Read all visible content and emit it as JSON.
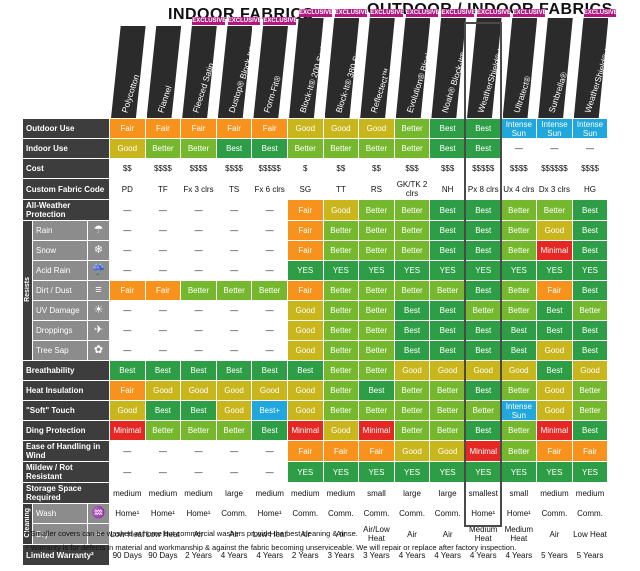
{
  "headers": {
    "indoor": "INDOOR FABRICS",
    "outdoor": "OUTDOOR / INDOOR FABRICS",
    "exclusive": "EXCLUSIVE"
  },
  "fabrics": [
    {
      "name": "Polycotton",
      "exclusive": false
    },
    {
      "name": "Flannel",
      "exclusive": false
    },
    {
      "name": "Fleeced Satin",
      "exclusive": true
    },
    {
      "name": "Dustop® Block-It®",
      "exclusive": true
    },
    {
      "name": "Form-Fit®",
      "exclusive": true
    },
    {
      "name": "Block-It® 200 Series",
      "exclusive": true
    },
    {
      "name": "Block-It® 380 Series",
      "exclusive": true
    },
    {
      "name": "Reflectect™",
      "exclusive": true
    },
    {
      "name": "Evolution® Block-It®",
      "exclusive": true
    },
    {
      "name": "Noah® Block-It®",
      "exclusive": true
    },
    {
      "name": "WeatherShield® HP",
      "exclusive": true
    },
    {
      "name": "Ultratect®",
      "exclusive": true
    },
    {
      "name": "Sunbrella®",
      "exclusive": false
    },
    {
      "name": "WeatherShield® HD",
      "exclusive": true
    }
  ],
  "group_labels": {
    "resists": "Resists",
    "cleaning": "Cleaning"
  },
  "rows": [
    {
      "label": "Outdoor Use",
      "kind": "main",
      "cells": [
        "Fair",
        "Fair",
        "Fair",
        "Fair",
        "Fair",
        "Good",
        "Good",
        "Good",
        "Better",
        "Best",
        "Best",
        "Intense Sun",
        "Intense Sun",
        "Intense Sun"
      ],
      "colors": [
        "Fa",
        "Fa",
        "Fa",
        "Fa",
        "Fa",
        "Go",
        "Go",
        "Go",
        "Be",
        "Bs",
        "Bs",
        "In",
        "In",
        "In"
      ]
    },
    {
      "label": "Indoor Use",
      "kind": "main",
      "cells": [
        "Good",
        "Better",
        "Better",
        "Best",
        "Best",
        "Better",
        "Better",
        "Better",
        "Better",
        "Best",
        "Best",
        "—",
        "—",
        "—"
      ],
      "colors": [
        "Go",
        "Be",
        "Be",
        "Bs",
        "Bs",
        "Be",
        "Be",
        "Be",
        "Be",
        "Bs",
        "Bs",
        "w",
        "w",
        "w"
      ]
    },
    {
      "label": "Cost",
      "kind": "main",
      "cells": [
        "$$",
        "$$$$",
        "$$$$",
        "$$$$",
        "$$$$$",
        "$",
        "$$",
        "$$",
        "$$$",
        "$$$",
        "$$$$$",
        "$$$$",
        "$$$$$$",
        "$$$$"
      ],
      "colors": [
        "w",
        "w",
        "w",
        "w",
        "w",
        "w",
        "w",
        "w",
        "w",
        "w",
        "w",
        "w",
        "w",
        "w"
      ]
    },
    {
      "label": "Custom Fabric Code",
      "kind": "main",
      "cells": [
        "PD",
        "TF",
        "Fx 3 clrs",
        "TS",
        "Fx 6 clrs",
        "SG",
        "TT",
        "RS",
        "GK/TK 2 clrs",
        "NH",
        "Px 8 clrs",
        "Ux 4 clrs",
        "Dx 3 clrs",
        "HG"
      ],
      "colors": [
        "w",
        "w",
        "w",
        "w",
        "w",
        "w",
        "w",
        "w",
        "w",
        "w",
        "w",
        "w",
        "w",
        "w"
      ]
    },
    {
      "label": "All-Weather Protection",
      "kind": "main",
      "cells": [
        "—",
        "—",
        "—",
        "—",
        "—",
        "Fair",
        "Good",
        "Better",
        "Better",
        "Best",
        "Best",
        "Better",
        "Better",
        "Best"
      ],
      "colors": [
        "w",
        "w",
        "w",
        "w",
        "w",
        "Fa",
        "Go",
        "Be",
        "Be",
        "Bs",
        "Bs",
        "Be",
        "Be",
        "Bs"
      ]
    },
    {
      "label": "Rain",
      "kind": "sub",
      "icon": "☂",
      "cells": [
        "—",
        "—",
        "—",
        "—",
        "—",
        "Fair",
        "Better",
        "Better",
        "Better",
        "Best",
        "Best",
        "Better",
        "Good",
        "Best"
      ],
      "colors": [
        "w",
        "w",
        "w",
        "w",
        "w",
        "Fa",
        "Be",
        "Be",
        "Be",
        "Bs",
        "Bs",
        "Be",
        "Go",
        "Bs"
      ]
    },
    {
      "label": "Snow",
      "kind": "sub",
      "icon": "❄",
      "cells": [
        "—",
        "—",
        "—",
        "—",
        "—",
        "Fair",
        "Better",
        "Better",
        "Better",
        "Best",
        "Best",
        "Better",
        "Minimal",
        "Best"
      ],
      "colors": [
        "w",
        "w",
        "w",
        "w",
        "w",
        "Fa",
        "Be",
        "Be",
        "Be",
        "Bs",
        "Bs",
        "Be",
        "Mi",
        "Bs"
      ]
    },
    {
      "label": "Acid Rain",
      "kind": "sub",
      "icon": "☔",
      "cells": [
        "—",
        "—",
        "—",
        "—",
        "—",
        "YES",
        "YES",
        "YES",
        "YES",
        "YES",
        "YES",
        "YES",
        "YES",
        "YES"
      ],
      "colors": [
        "w",
        "w",
        "w",
        "w",
        "w",
        "Ye",
        "Ye",
        "Ye",
        "Ye",
        "Ye",
        "Ye",
        "Ye",
        "Ye",
        "Ye"
      ]
    },
    {
      "label": "Dirt / Dust",
      "kind": "sub",
      "icon": "≡",
      "cells": [
        "Fair",
        "Fair",
        "Better",
        "Better",
        "Better",
        "Fair",
        "Better",
        "Better",
        "Better",
        "Better",
        "Best",
        "Better",
        "Fair",
        "Best"
      ],
      "colors": [
        "Fa",
        "Fa",
        "Be",
        "Be",
        "Be",
        "Fa",
        "Be",
        "Be",
        "Be",
        "Be",
        "Bs",
        "Be",
        "Fa",
        "Bs"
      ]
    },
    {
      "label": "UV Damage",
      "kind": "sub",
      "icon": "☀",
      "cells": [
        "—",
        "—",
        "—",
        "—",
        "—",
        "Good",
        "Better",
        "Better",
        "Best",
        "Best",
        "Better",
        "Better",
        "Best",
        "Better"
      ],
      "colors": [
        "w",
        "w",
        "w",
        "w",
        "w",
        "Go",
        "Be",
        "Be",
        "Bs",
        "Bs",
        "Be",
        "Be",
        "Bs",
        "Be"
      ]
    },
    {
      "label": "Droppings",
      "kind": "sub",
      "icon": "✈",
      "cells": [
        "—",
        "—",
        "—",
        "—",
        "—",
        "Good",
        "Better",
        "Better",
        "Best",
        "Best",
        "Best",
        "Best",
        "Best",
        "Best"
      ],
      "colors": [
        "w",
        "w",
        "w",
        "w",
        "w",
        "Go",
        "Be",
        "Be",
        "Bs",
        "Bs",
        "Bs",
        "Bs",
        "Bs",
        "Bs"
      ]
    },
    {
      "label": "Tree Sap",
      "kind": "sub",
      "icon": "✿",
      "cells": [
        "—",
        "—",
        "—",
        "—",
        "—",
        "Good",
        "Better",
        "Better",
        "Best",
        "Best",
        "Best",
        "Best",
        "Good",
        "Best"
      ],
      "colors": [
        "w",
        "w",
        "w",
        "w",
        "w",
        "Go",
        "Be",
        "Be",
        "Bs",
        "Bs",
        "Bs",
        "Bs",
        "Go",
        "Bs"
      ]
    },
    {
      "label": "Breathability",
      "kind": "main",
      "cells": [
        "Best",
        "Best",
        "Best",
        "Best",
        "Best",
        "Best",
        "Better",
        "Better",
        "Good",
        "Good",
        "Good",
        "Good",
        "Best",
        "Good"
      ],
      "colors": [
        "Bs",
        "Bs",
        "Bs",
        "Bs",
        "Bs",
        "Bs",
        "Be",
        "Be",
        "Go",
        "Go",
        "Go",
        "Go",
        "Bs",
        "Go"
      ]
    },
    {
      "label": "Heat Insulation",
      "kind": "main",
      "cells": [
        "Fair",
        "Good",
        "Good",
        "Good",
        "Good",
        "Good",
        "Better",
        "Best",
        "Better",
        "Better",
        "Best",
        "Better",
        "Good",
        "Better"
      ],
      "colors": [
        "Fa",
        "Go",
        "Go",
        "Go",
        "Go",
        "Go",
        "Be",
        "Bs",
        "Be",
        "Be",
        "Bs",
        "Be",
        "Go",
        "Be"
      ]
    },
    {
      "label": "\"Soft\" Touch",
      "kind": "main",
      "cells": [
        "Good",
        "Best",
        "Best",
        "Good",
        "Best+",
        "Good",
        "Better",
        "Better",
        "Better",
        "Better",
        "Better",
        "Intense Sun",
        "Good",
        "Better"
      ],
      "colors": [
        "Go",
        "Bs",
        "Bs",
        "Go",
        "Bp",
        "Go",
        "Be",
        "Be",
        "Be",
        "Be",
        "Be",
        "In",
        "Go",
        "Be"
      ]
    },
    {
      "label": "Ding Protection",
      "kind": "main",
      "cells": [
        "Minimal",
        "Better",
        "Better",
        "Better",
        "Best",
        "Minimal",
        "Good",
        "Minimal",
        "Better",
        "Better",
        "Best",
        "Better",
        "Minimal",
        "Best"
      ],
      "colors": [
        "Mi",
        "Be",
        "Be",
        "Be",
        "Bs",
        "Mi",
        "Go",
        "Mi",
        "Be",
        "Be",
        "Bs",
        "Be",
        "Mi",
        "Bs"
      ]
    },
    {
      "label": "Ease of Handling in Wind",
      "kind": "main",
      "cells": [
        "—",
        "—",
        "—",
        "—",
        "—",
        "Fair",
        "Fair",
        "Fair",
        "Good",
        "Good",
        "Minimal",
        "Better",
        "Fair",
        "Fair"
      ],
      "colors": [
        "w",
        "w",
        "w",
        "w",
        "w",
        "Fa",
        "Fa",
        "Fa",
        "Go",
        "Go",
        "Mi",
        "Be",
        "Fa",
        "Fa"
      ]
    },
    {
      "label": "Mildew / Rot Resistant",
      "kind": "main",
      "cells": [
        "—",
        "—",
        "—",
        "—",
        "—",
        "YES",
        "YES",
        "YES",
        "YES",
        "YES",
        "YES",
        "YES",
        "YES",
        "YES"
      ],
      "colors": [
        "w",
        "w",
        "w",
        "w",
        "w",
        "Ye",
        "Ye",
        "Ye",
        "Ye",
        "Ye",
        "Ye",
        "Ye",
        "Ye",
        "Ye"
      ]
    },
    {
      "label": "Storage Space Required",
      "kind": "main",
      "cells": [
        "medium",
        "medium",
        "medium",
        "large",
        "medium",
        "medium",
        "medium",
        "small",
        "large",
        "large",
        "smallest",
        "small",
        "medium",
        "medium"
      ],
      "colors": [
        "w",
        "w",
        "w",
        "w",
        "w",
        "w",
        "w",
        "w",
        "w",
        "w",
        "w",
        "w",
        "w",
        "w"
      ]
    },
    {
      "label": "Wash",
      "kind": "sub",
      "icon": "♒",
      "cells": [
        "Home¹",
        "Home¹",
        "Home¹",
        "Comm.",
        "Home¹",
        "Comm.",
        "Comm.",
        "Comm.",
        "Comm.",
        "Comm.",
        "Home¹",
        "Home¹",
        "Comm.",
        "Comm."
      ],
      "colors": [
        "w",
        "w",
        "w",
        "w",
        "w",
        "w",
        "w",
        "w",
        "w",
        "w",
        "w",
        "w",
        "w",
        "w"
      ]
    },
    {
      "label": "Dry",
      "kind": "sub",
      "icon": "≈",
      "cells": [
        "Low Heat",
        "Low Heat",
        "Air",
        "Air",
        "Low Heat",
        "Air",
        "Air",
        "Air/Low Heat",
        "Air",
        "Air",
        "Medium Heat",
        "Medium Heat",
        "Air",
        "Low Heat"
      ],
      "colors": [
        "w",
        "w",
        "w",
        "w",
        "w",
        "w",
        "w",
        "w",
        "w",
        "w",
        "w",
        "w",
        "w",
        "w"
      ]
    },
    {
      "label": "Limited Warranty²",
      "kind": "main",
      "cells": [
        "90 Days",
        "90 Days",
        "2 Years",
        "4 Years",
        "4 Years",
        "2 Years",
        "3 Years",
        "3 Years",
        "4 Years",
        "4 Years",
        "4 Years",
        "4 Years",
        "5 Years",
        "5 Years"
      ],
      "colors": [
        "w",
        "w",
        "w",
        "w",
        "w",
        "w",
        "w",
        "w",
        "w",
        "w",
        "w",
        "w",
        "w",
        "w"
      ]
    }
  ],
  "footnotes": {
    "one": "¹ Smaller covers can be washed at home but commercial washers provide the best cleaning & rinse.",
    "two": "² Warranty is for defects in material and workmanship & against the fabric becoming unserviceable. We will repair or replace after factory inspection."
  }
}
